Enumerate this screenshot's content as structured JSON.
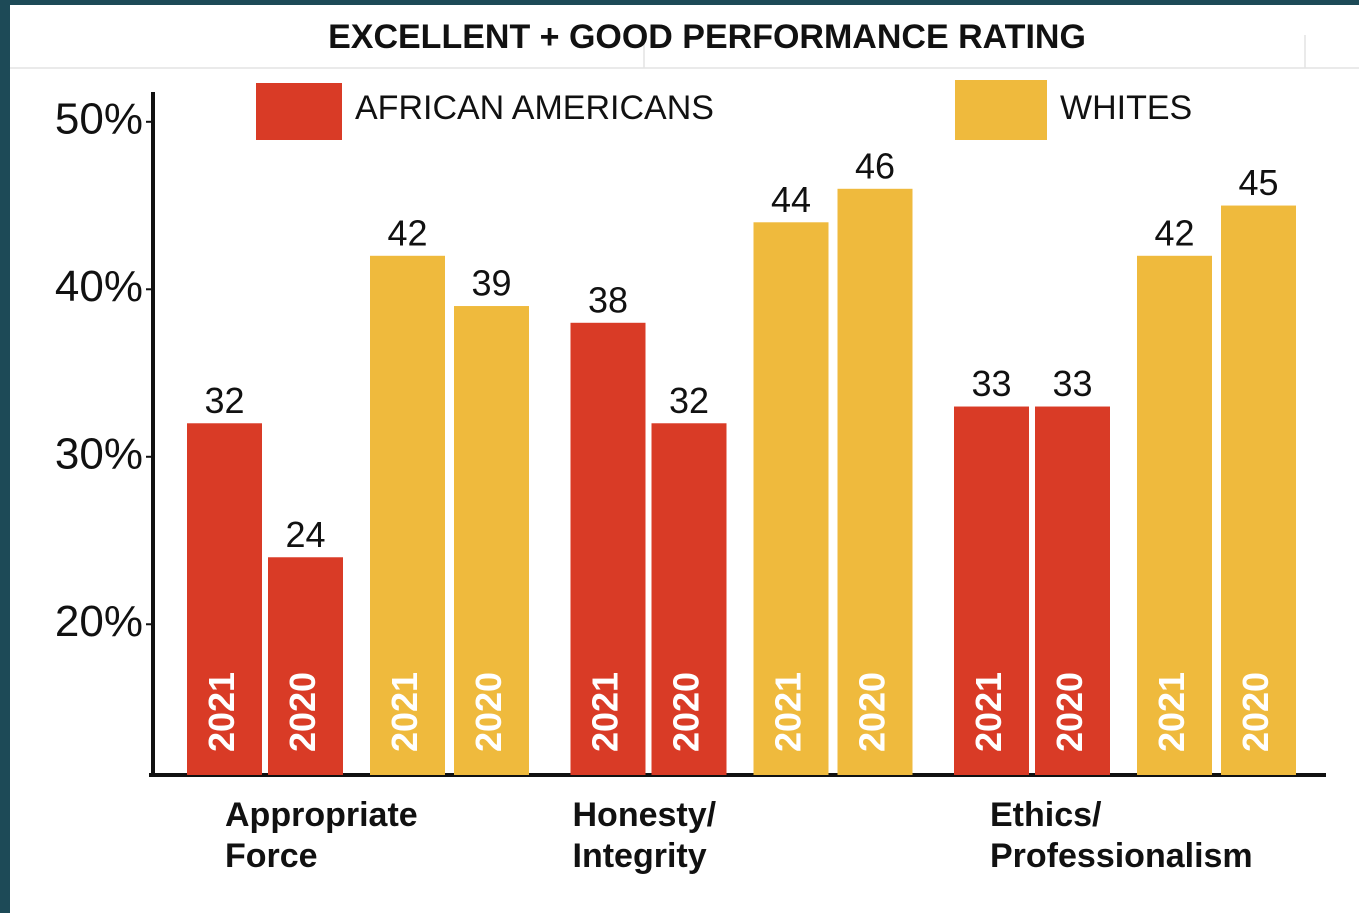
{
  "chart_data": {
    "type": "grouped-bar",
    "title": "EXCELLENT + GOOD PERFORMANCE RATING",
    "categories": [
      [
        "Appropriate",
        "Force"
      ],
      [
        "Honesty/",
        "Integrity"
      ],
      [
        "Ethics/",
        "Professionalism"
      ]
    ],
    "years": [
      "2021",
      "2020"
    ],
    "series": [
      {
        "name": "AFRICAN AMERICANS",
        "color": "#d93b26",
        "values": [
          [
            32,
            24
          ],
          [
            38,
            32
          ],
          [
            33,
            33
          ]
        ]
      },
      {
        "name": "WHITES",
        "color": "#efba3d",
        "values": [
          [
            42,
            39
          ],
          [
            44,
            46
          ],
          [
            42,
            45
          ]
        ]
      }
    ],
    "ylim": [
      11,
      51.6
    ],
    "yticks": [
      {
        "value": 20,
        "label": "20%"
      },
      {
        "value": 30,
        "label": "30%"
      },
      {
        "value": 40,
        "label": "40%"
      },
      {
        "value": 50,
        "label": "50%"
      }
    ]
  }
}
